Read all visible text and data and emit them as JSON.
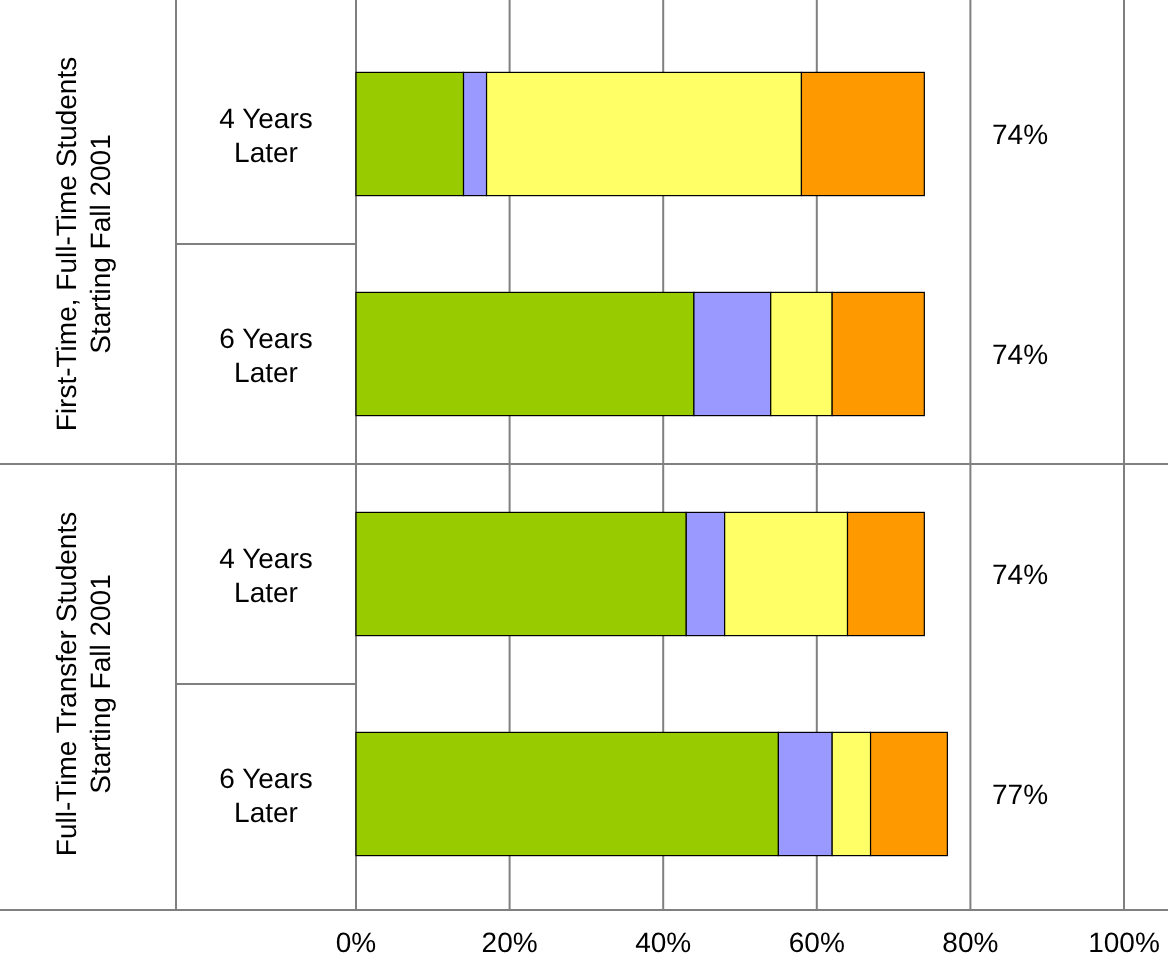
{
  "chart_data": {
    "type": "bar",
    "orientation": "horizontal",
    "stacked": true,
    "categories": [
      "4 Years Later",
      "6 Years Later",
      "4 Years Later",
      "6 Years Later"
    ],
    "series": [
      {
        "color": "#99cc00",
        "values": [
          14,
          44,
          43,
          55
        ]
      },
      {
        "color": "#9999ff",
        "values": [
          3,
          10,
          5,
          7
        ]
      },
      {
        "color": "#ffff66",
        "values": [
          41,
          8,
          16,
          5
        ]
      },
      {
        "color": "#ff9900",
        "values": [
          16,
          12,
          10,
          10
        ]
      }
    ],
    "xlim": [
      0,
      100
    ],
    "xticks": [
      {
        "value": 0,
        "label": "0%"
      },
      {
        "value": 20,
        "label": "20%"
      },
      {
        "value": 40,
        "label": "40%"
      },
      {
        "value": 60,
        "label": "60%"
      },
      {
        "value": 80,
        "label": "80%"
      },
      {
        "value": 100,
        "label": "100%"
      }
    ],
    "grid": "x",
    "totals": [
      "74%",
      "74%",
      "74%",
      "77%"
    ],
    "annotations": [
      "First-Time, Full-Time Students Starting Fall 2001",
      "Full-Time Transfer Students Starting Fall 2001"
    ]
  }
}
